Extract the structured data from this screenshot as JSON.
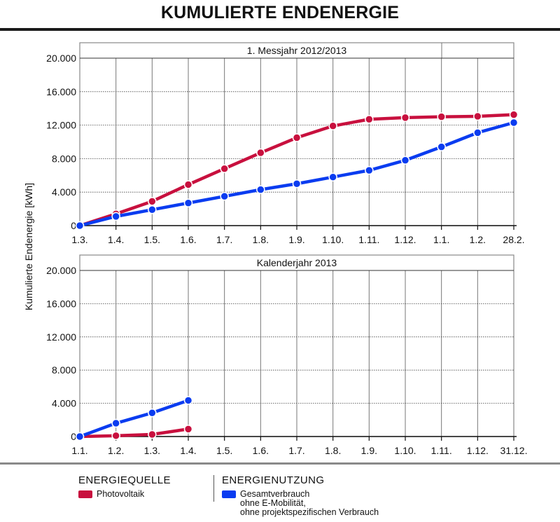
{
  "page_title": "KUMULIERTE ENDENERGIE",
  "y_axis_label": "Kumulierte Endenergie [kWh]",
  "legend": {
    "source_heading": "ENERGIEQUELLE",
    "usage_heading": "ENERGIENUTZUNG",
    "photovoltaik_label": "Photovoltaik",
    "gesamt_line1": "Gesamtverbrauch",
    "gesamt_line2": "ohne E-Mobilität,",
    "gesamt_line3": "ohne projektspezifischen Verbrauch"
  },
  "colors": {
    "photovoltaik": "#c8103e",
    "gesamtverbrauch": "#0a3cf0",
    "grid": "#777777",
    "frame": "#888888"
  },
  "chart_data": [
    {
      "type": "line",
      "title": "1. Messjahr 2012/2013",
      "ylabel": "Kumulierte Endenergie [kWh]",
      "ylim": [
        0,
        20000
      ],
      "y_ticks": [
        "0",
        "4.000",
        "8.000",
        "12.000",
        "16.000",
        "20.000"
      ],
      "y_tick_values": [
        0,
        4000,
        8000,
        12000,
        16000,
        20000
      ],
      "x_ticks": [
        "1.3.",
        "1.4.",
        "1.5.",
        "1.6.",
        "1.7.",
        "1.8.",
        "1.9.",
        "1.10.",
        "1.11.",
        "1.12.",
        "1.1.",
        "1.2.",
        "28.2."
      ],
      "grid": true,
      "series": [
        {
          "name": "Photovoltaik",
          "color": "#c8103e",
          "values": [
            0,
            1400,
            2900,
            4900,
            6800,
            8700,
            10500,
            11900,
            12700,
            12900,
            13000,
            13050,
            13250
          ]
        },
        {
          "name": "Gesamtverbrauch",
          "color": "#0a3cf0",
          "values": [
            0,
            1100,
            1900,
            2700,
            3500,
            4300,
            5000,
            5800,
            6600,
            7800,
            9400,
            11100,
            12300
          ]
        }
      ]
    },
    {
      "type": "line",
      "title": "Kalenderjahr 2013",
      "ylabel": "Kumulierte Endenergie [kWh]",
      "ylim": [
        0,
        20000
      ],
      "y_ticks": [
        "0",
        "4.000",
        "8.000",
        "12.000",
        "16.000",
        "20.000"
      ],
      "y_tick_values": [
        0,
        4000,
        8000,
        12000,
        16000,
        20000
      ],
      "x_ticks": [
        "1.1.",
        "1.2.",
        "1.3.",
        "1.4.",
        "1.5.",
        "1.6.",
        "1.7.",
        "1.8.",
        "1.9.",
        "1.10.",
        "1.11.",
        "1.12.",
        "31.12."
      ],
      "grid": true,
      "series": [
        {
          "name": "Photovoltaik",
          "color": "#c8103e",
          "values": [
            0,
            100,
            250,
            900
          ]
        },
        {
          "name": "Gesamtverbrauch",
          "color": "#0a3cf0",
          "values": [
            0,
            1600,
            2850,
            4350
          ]
        }
      ]
    }
  ]
}
